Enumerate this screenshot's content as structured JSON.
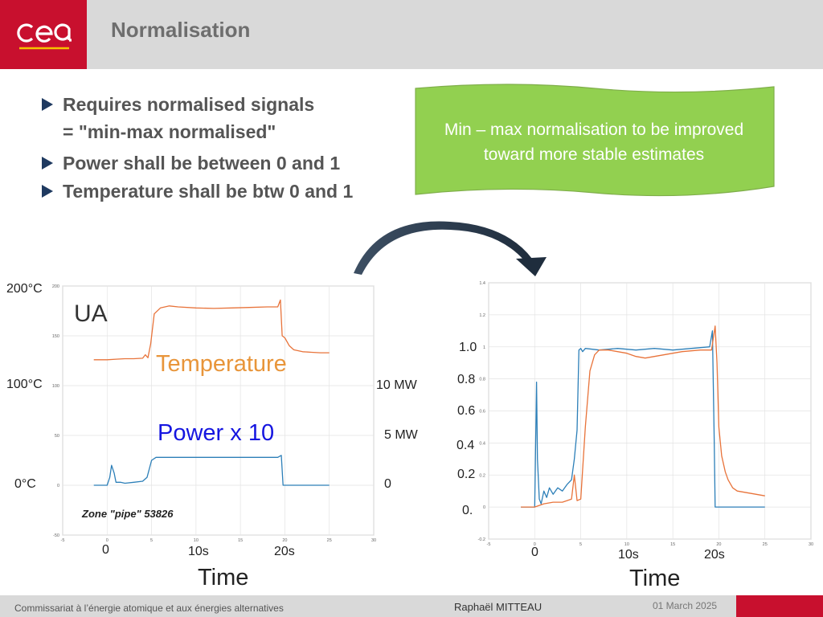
{
  "header": {
    "title": "Normalisation"
  },
  "bullets": [
    "Requires normalised signals",
    "= \"min-max normalised\"",
    "Power shall be between 0 and  1",
    "Temperature shall be btw 0 and 1"
  ],
  "callout": {
    "line1": "Min – max normalisation to be improved",
    "line2": "toward more stable estimates",
    "color": "#92d050"
  },
  "colors": {
    "temperature": "#e8733a",
    "power": "#2c7fb8",
    "brand_red": "#c8102e",
    "header_gray": "#d9d9d9"
  },
  "chart_data": [
    {
      "type": "line",
      "annotation": "Zone \"pipe\" 53826",
      "overlay_labels": {
        "ua": "UA",
        "temperature": "Temperature",
        "power": "Power x 10"
      },
      "left_axis_labels": [
        "200°C",
        "100°C",
        "0°C"
      ],
      "right_axis_labels": [
        "10 MW",
        "5 MW",
        "0"
      ],
      "x_labels": [
        "0",
        "10s",
        "20s"
      ],
      "xlabel": "Time",
      "xticks": [
        "-5",
        "0",
        "5",
        "10",
        "15",
        "20",
        "25",
        "30"
      ],
      "yticks": [
        "200",
        "150",
        "100",
        "50",
        "0",
        "-50"
      ],
      "xlim": [
        -5,
        30
      ],
      "ylim": [
        -50,
        200
      ],
      "series": [
        {
          "name": "Temperature",
          "color": "#e8733a",
          "x": [
            -1.5,
            0,
            1,
            2,
            3,
            4,
            4.3,
            4.6,
            4.9,
            5.3,
            6,
            7,
            8,
            10,
            12,
            14,
            16,
            18,
            19.2,
            19.5,
            19.7,
            20,
            20.5,
            21,
            22,
            23,
            24,
            25
          ],
          "y": [
            126,
            126,
            126.5,
            127,
            127,
            127.5,
            131,
            128,
            142,
            172,
            178,
            180,
            179,
            178,
            177.5,
            178,
            178.5,
            179,
            179,
            186,
            150,
            148,
            140,
            136,
            134,
            133.5,
            133,
            133
          ]
        },
        {
          "name": "Power x 10",
          "color": "#2c7fb8",
          "x": [
            -1.5,
            0,
            0.3,
            0.5,
            0.8,
            1,
            1.5,
            2,
            3,
            4,
            4.5,
            5,
            5.5,
            6,
            8,
            10,
            12,
            14,
            16,
            18,
            19.2,
            19.6,
            19.8,
            20,
            22,
            24,
            25
          ],
          "y": [
            0,
            0,
            8,
            20,
            12,
            3,
            3,
            2,
            3,
            4,
            8,
            25,
            28,
            28,
            28,
            28,
            28,
            28,
            28,
            28,
            28,
            30,
            0,
            0,
            0,
            0,
            0
          ]
        }
      ]
    },
    {
      "type": "line",
      "left_axis_labels": [
        "1.0",
        "0.8",
        "0.6",
        "0.4",
        "0.2",
        "0."
      ],
      "x_labels": [
        "0",
        "10s",
        "20s"
      ],
      "xlabel": "Time",
      "xticks": [
        "-5",
        "0",
        "5",
        "10",
        "15",
        "20",
        "25",
        "30"
      ],
      "yticks": [
        "1.4",
        "1.2",
        "1",
        "0.8",
        "0.6",
        "0.4",
        "0.2",
        "0",
        "-0.2"
      ],
      "xlim": [
        -5,
        30
      ],
      "ylim": [
        -0.2,
        1.4
      ],
      "series": [
        {
          "name": "Power",
          "color": "#2c7fb8",
          "x": [
            -1.5,
            0,
            0.2,
            0.3,
            0.5,
            0.7,
            1,
            1.3,
            1.6,
            2,
            2.5,
            3,
            3.5,
            4,
            4.3,
            4.6,
            4.8,
            5,
            5.2,
            5.5,
            7,
            9,
            11,
            13,
            15,
            17,
            19,
            19.3,
            19.5,
            19.6,
            19.8,
            20.1,
            21,
            23,
            25
          ],
          "y": [
            0.0,
            0.0,
            0.78,
            0.3,
            0.05,
            0.02,
            0.1,
            0.06,
            0.12,
            0.08,
            0.12,
            0.1,
            0.14,
            0.17,
            0.3,
            0.48,
            0.98,
            0.99,
            0.97,
            0.99,
            0.98,
            0.99,
            0.98,
            0.99,
            0.98,
            0.99,
            1.0,
            1.1,
            0.4,
            0.0,
            0.0,
            0.0,
            0.0,
            0.0,
            0.0
          ]
        },
        {
          "name": "Temperature",
          "color": "#e8733a",
          "x": [
            -1.5,
            0,
            1,
            2,
            3,
            4,
            4.3,
            4.6,
            5,
            5.5,
            6,
            6.5,
            7,
            8,
            10,
            11,
            12,
            13,
            14,
            15,
            16,
            18,
            19.2,
            19.6,
            19.8,
            20,
            20.3,
            20.7,
            21,
            21.5,
            22,
            23,
            24,
            25
          ],
          "y": [
            0.0,
            0.0,
            0.02,
            0.03,
            0.03,
            0.05,
            0.2,
            0.04,
            0.05,
            0.5,
            0.85,
            0.95,
            0.98,
            0.98,
            0.96,
            0.94,
            0.93,
            0.94,
            0.95,
            0.96,
            0.97,
            0.98,
            0.98,
            1.13,
            0.9,
            0.5,
            0.32,
            0.22,
            0.17,
            0.12,
            0.1,
            0.09,
            0.08,
            0.07
          ]
        }
      ]
    }
  ],
  "footer": {
    "org": "Commissariat à l’énergie atomique et aux énergies alternatives",
    "author": "Raphaël MITTEAU",
    "date": "01 March 2025"
  }
}
